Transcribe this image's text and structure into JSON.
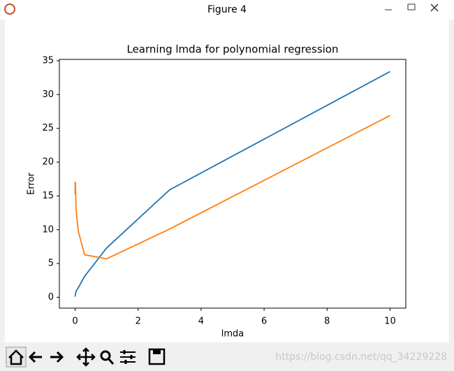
{
  "window": {
    "title": "Figure 4"
  },
  "watermark": "https://blog.csdn.net/qq_34229228",
  "chart_data": {
    "type": "line",
    "title": "Learning lmda for polynomial regression",
    "x_label": "lmda",
    "y_label": "Error",
    "x": [
      0,
      0.001,
      0.003,
      0.01,
      0.03,
      0.1,
      0.3,
      1,
      3,
      10
    ],
    "series": [
      {
        "color": "#1f77b4",
        "values": [
          0.1,
          0.2,
          0.25,
          0.4,
          0.9,
          1.4,
          3.1,
          7.3,
          15.9,
          33.4
        ]
      },
      {
        "color": "#ff7f0e",
        "values": [
          17.0,
          15.2,
          17.1,
          16.9,
          13.0,
          9.8,
          6.3,
          5.7,
          10.1,
          26.9
        ]
      }
    ],
    "xlim": [
      -0.5,
      10.5
    ],
    "ylim": [
      -1.6,
      35.2
    ],
    "xticks": [
      0,
      2,
      4,
      6,
      8,
      10
    ],
    "yticks": [
      0,
      5,
      10,
      15,
      20,
      25,
      30,
      35
    ]
  }
}
